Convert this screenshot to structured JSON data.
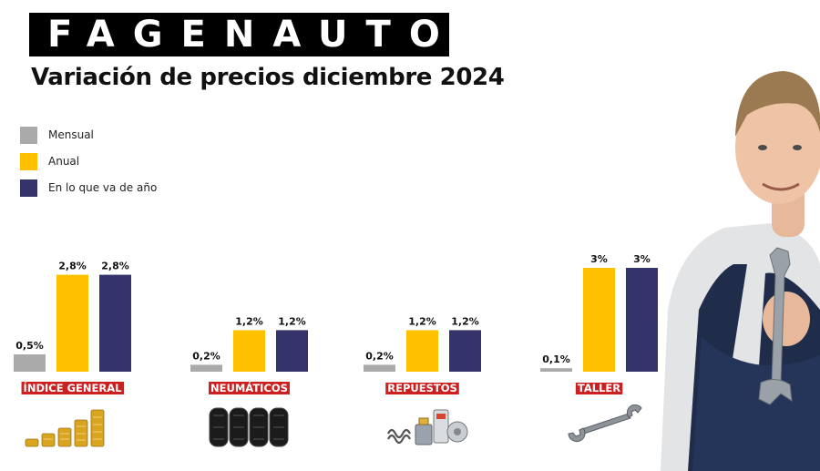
{
  "brand": {
    "logo_text": "FAGENAUTO"
  },
  "header": {
    "title": "Variación de precios diciembre 2024"
  },
  "colors": {
    "mensual": "#aaaaaa",
    "anual": "#ffc000",
    "ytd": "#34336a",
    "label_bg": "#cc1f1f"
  },
  "chart_data": {
    "type": "bar",
    "categories": [
      "ÍNDICE GENERAL",
      "NEUMÁTICOS",
      "REPUESTOS",
      "TALLER"
    ],
    "series": [
      {
        "name": "Mensual",
        "values": [
          0.5,
          0.2,
          0.2,
          0.1
        ],
        "labels": [
          "0,5%",
          "0,2%",
          "0,2%",
          "0,1%"
        ]
      },
      {
        "name": "Anual",
        "values": [
          2.8,
          1.2,
          1.2,
          3
        ],
        "labels": [
          "2,8%",
          "1,2%",
          "1,2%",
          "3%"
        ]
      },
      {
        "name": "En lo que va de año",
        "values": [
          2.8,
          1.2,
          1.2,
          3
        ],
        "labels": [
          "2,8%",
          "1,2%",
          "1,2%",
          "3%"
        ]
      }
    ],
    "legend": "top-left",
    "grid": false
  },
  "icons": [
    "coins-icon",
    "tires-icon",
    "auto-parts-icon",
    "wrench-icon",
    "mechanic-photo"
  ]
}
